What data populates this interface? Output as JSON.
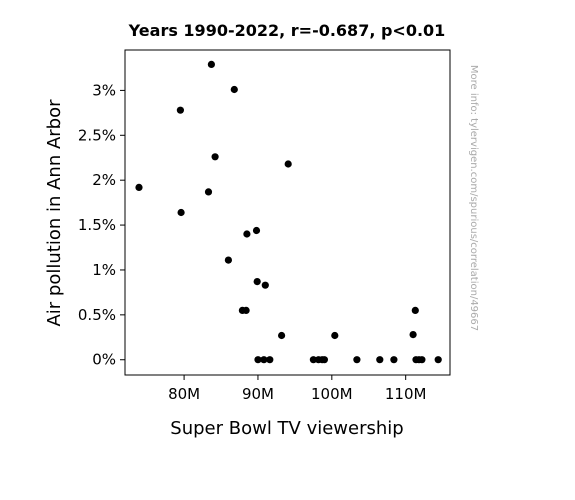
{
  "chart_data": {
    "type": "scatter",
    "title": "Years 1990-2022, r=-0.687, p<0.01",
    "xlabel": "Super Bowl TV viewership",
    "ylabel": "Air pollution in Ann Arbor",
    "watermark": "More info: tylervigen.com/spurious/correlation/49667",
    "xlim": [
      72000000,
      116000000
    ],
    "ylim": [
      -0.0017,
      0.0345
    ],
    "x_ticks": [
      {
        "value": 80000000,
        "label": "80M"
      },
      {
        "value": 90000000,
        "label": "90M"
      },
      {
        "value": 100000000,
        "label": "100M"
      },
      {
        "value": 110000000,
        "label": "110M"
      }
    ],
    "y_ticks": [
      {
        "value": 0.0,
        "label": "0%"
      },
      {
        "value": 0.005,
        "label": "0.5%"
      },
      {
        "value": 0.01,
        "label": "1%"
      },
      {
        "value": 0.015,
        "label": "1.5%"
      },
      {
        "value": 0.02,
        "label": "2%"
      },
      {
        "value": 0.025,
        "label": "2.5%"
      },
      {
        "value": 0.03,
        "label": "3%"
      }
    ],
    "grid": false,
    "legend": "none",
    "marker_color": "#000000",
    "points": [
      {
        "x": 73900000,
        "y": 0.0192
      },
      {
        "x": 79500000,
        "y": 0.0278
      },
      {
        "x": 79600000,
        "y": 0.0164
      },
      {
        "x": 83300000,
        "y": 0.0187
      },
      {
        "x": 83700000,
        "y": 0.0329
      },
      {
        "x": 84200000,
        "y": 0.0226
      },
      {
        "x": 86000000,
        "y": 0.0111
      },
      {
        "x": 86800000,
        "y": 0.0301
      },
      {
        "x": 87900000,
        "y": 0.0055
      },
      {
        "x": 88400000,
        "y": 0.0055
      },
      {
        "x": 88500000,
        "y": 0.014
      },
      {
        "x": 89800000,
        "y": 0.0144
      },
      {
        "x": 89900000,
        "y": 0.0087
      },
      {
        "x": 90000000,
        "y": 0.0
      },
      {
        "x": 90800000,
        "y": 0.0
      },
      {
        "x": 91000000,
        "y": 0.0083
      },
      {
        "x": 91600000,
        "y": 0.0
      },
      {
        "x": 93200000,
        "y": 0.0027
      },
      {
        "x": 94100000,
        "y": 0.0218
      },
      {
        "x": 97500000,
        "y": 0.0
      },
      {
        "x": 98200000,
        "y": 0.0
      },
      {
        "x": 98700000,
        "y": 0.0
      },
      {
        "x": 99000000,
        "y": 0.0
      },
      {
        "x": 100400000,
        "y": 0.0027
      },
      {
        "x": 103400000,
        "y": 0.0
      },
      {
        "x": 106500000,
        "y": 0.0
      },
      {
        "x": 108400000,
        "y": 0.0
      },
      {
        "x": 111000000,
        "y": 0.0028
      },
      {
        "x": 111300000,
        "y": 0.0055
      },
      {
        "x": 111400000,
        "y": 0.0
      },
      {
        "x": 111800000,
        "y": 0.0
      },
      {
        "x": 112200000,
        "y": 0.0
      },
      {
        "x": 114400000,
        "y": 0.0
      }
    ]
  }
}
